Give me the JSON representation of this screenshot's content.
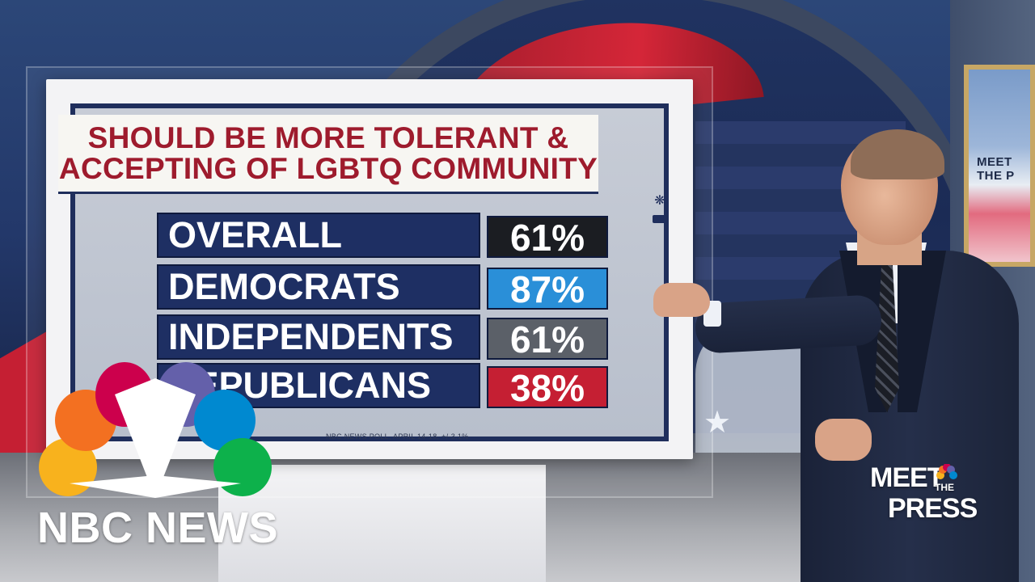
{
  "headline": {
    "line1": "SHOULD BE MORE TOLERANT &",
    "line2": "ACCEPTING OF LGBTQ COMMUNITY"
  },
  "poll": {
    "rows": [
      {
        "label": "OVERALL",
        "value": "61%",
        "color": "#1b1d22"
      },
      {
        "label": "DEMOCRATS",
        "value": "87%",
        "color": "#2a8fd8"
      },
      {
        "label": "INDEPENDENTS",
        "value": "61%",
        "color": "#5b6068"
      },
      {
        "label": "REPUBLICANS",
        "value": "38%",
        "color": "#c51f33"
      }
    ],
    "source": "NBC NEWS POLL, APRIL 14-18, +/-3.1%"
  },
  "logos": {
    "network": "NBC NEWS",
    "show_line1": "MEET",
    "show_the": "THE",
    "show_line2": "PRESS",
    "wall_frame_text": "MEET THE P"
  },
  "peacock_colors": [
    "#f8b21d",
    "#f37021",
    "#cc004c",
    "#6460aa",
    "#0089d0",
    "#0db14b"
  ]
}
